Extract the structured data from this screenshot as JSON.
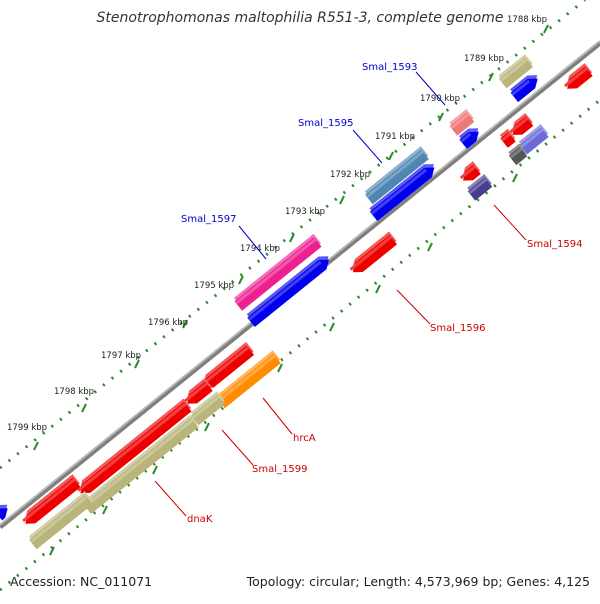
{
  "title": "Stenotrophomonas maltophilia R551-3, complete genome",
  "footer": {
    "accession": "Accession: NC_011071",
    "summary": "Topology: circular; Length: 4,573,969 bp; Genes: 4,125"
  },
  "ticks": [
    "1788 kbp",
    "1789 kbp",
    "1790 kbp",
    "1791 kbp",
    "1792 kbp",
    "1793 kbp",
    "1794 kbp",
    "1795 kbp",
    "1796 kbp",
    "1797 kbp",
    "1798 kbp",
    "1799 kbp"
  ],
  "gene_labels": [
    {
      "text": "Smal_1593",
      "color": "#0000cc"
    },
    {
      "text": "Smal_1595",
      "color": "#0000cc"
    },
    {
      "text": "Smal_1597",
      "color": "#0000cc"
    },
    {
      "text": "Smal_1594",
      "color": "#cc0000"
    },
    {
      "text": "Smal_1596",
      "color": "#cc0000"
    },
    {
      "text": "hrcA",
      "color": "#cc0000"
    },
    {
      "text": "Smal_1599",
      "color": "#cc0000"
    },
    {
      "text": "dnaK",
      "color": "#cc0000"
    }
  ],
  "colors": {
    "backbone": "#7f7f7f",
    "dots": "#2b8a2b",
    "forward_cds": "#0000ee",
    "reverse_cds": "#ee0000",
    "olive_feature": "#b8b47a"
  }
}
